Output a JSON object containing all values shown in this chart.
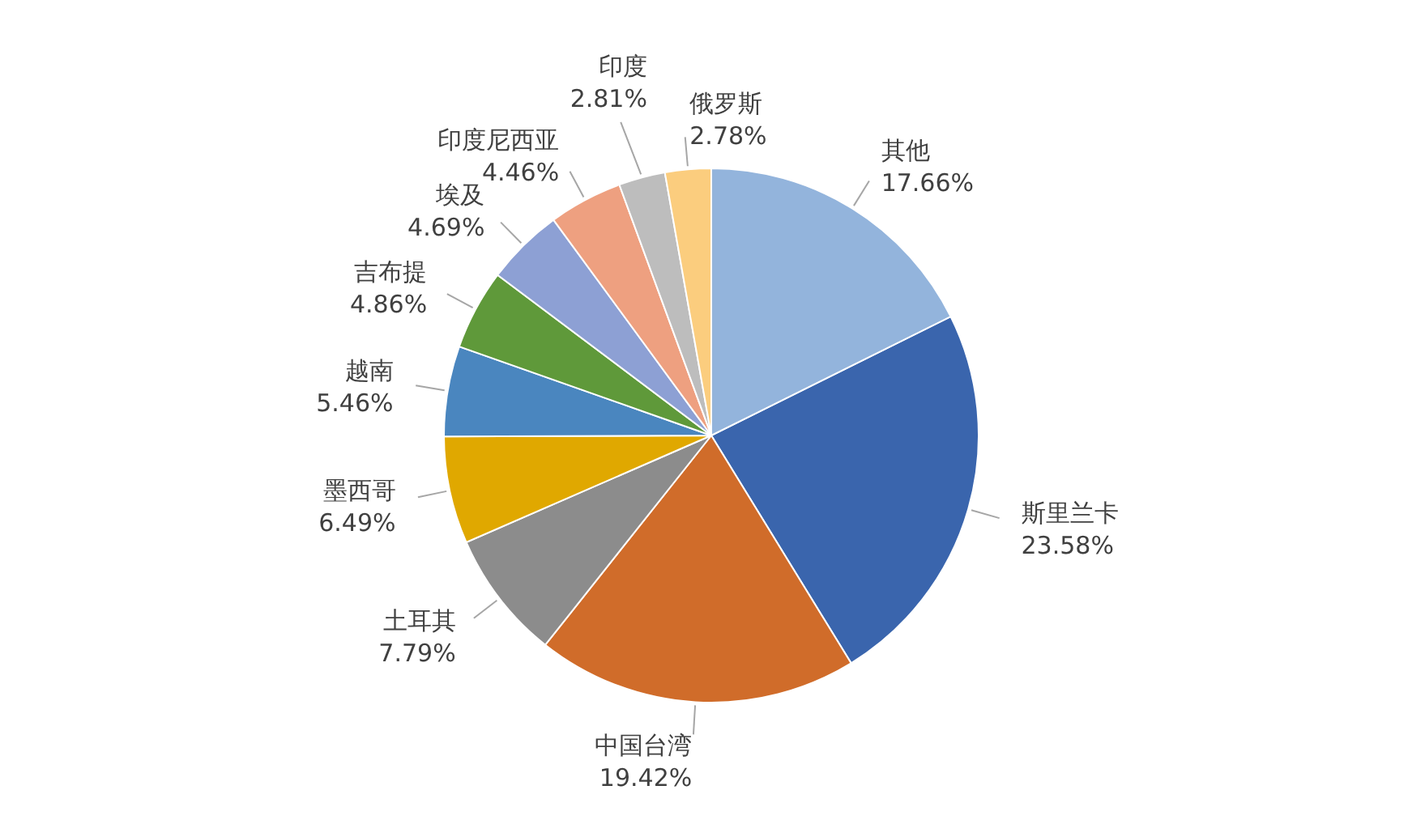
{
  "chart_data": {
    "type": "pie",
    "categories": [
      "斯里兰卡",
      "中国台湾",
      "土耳其",
      "墨西哥",
      "越南",
      "吉布提",
      "埃及",
      "印度尼西亚",
      "印度",
      "俄罗斯",
      "其他"
    ],
    "values": [
      23.58,
      19.42,
      7.79,
      6.49,
      5.46,
      4.86,
      4.69,
      4.46,
      2.81,
      2.78,
      17.66
    ],
    "value_labels": [
      "23.58%",
      "19.42%",
      "7.79%",
      "6.49%",
      "5.46%",
      "4.86%",
      "4.69%",
      "4.46%",
      "2.81%",
      "2.78%",
      "17.66%"
    ],
    "colors": [
      "#3a65ad",
      "#d06c2a",
      "#8c8c8c",
      "#e0a800",
      "#4a86bf",
      "#5f993a",
      "#8da0d4",
      "#eea080",
      "#bdbdbd",
      "#fbcd7e",
      "#93b4dc"
    ],
    "legend": false
  }
}
